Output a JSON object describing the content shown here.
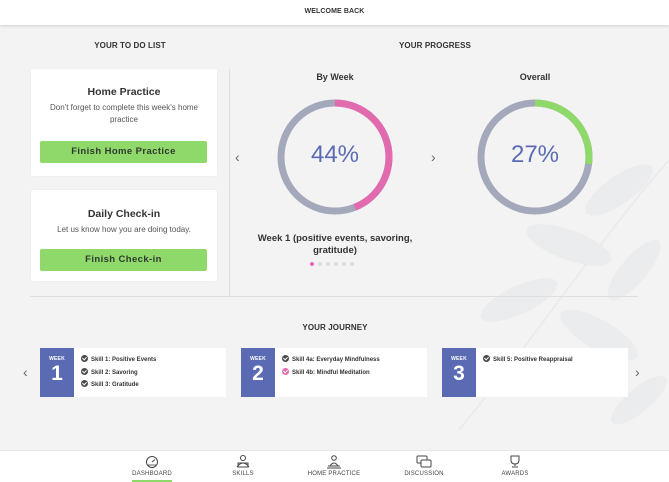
{
  "header": {
    "title": "WELCOME BACK"
  },
  "todo": {
    "section_title": "YOUR TO DO LIST",
    "home_practice": {
      "title": "Home Practice",
      "text": "Don't forget to complete this week's home practice",
      "button": "Finish Home Practice"
    },
    "checkin": {
      "title": "Daily Check-in",
      "text": "Let us know how you are doing today.",
      "button": "Finish Check-in"
    }
  },
  "progress": {
    "section_title": "YOUR PROGRESS",
    "by_week": {
      "title": "By Week",
      "percent_label": "44%",
      "value": 0.44,
      "color": "#e26bb0"
    },
    "overall": {
      "title": "Overall",
      "percent_label": "27%",
      "value": 0.27,
      "color": "#8fd96b"
    },
    "track_color": "#a3a8ba",
    "week_caption": "Week 1 (positive events, savoring, gratitude)",
    "carousel_dots": 6,
    "active_dot": 0,
    "prev_arrow": "‹",
    "next_arrow": "›"
  },
  "journey": {
    "section_title": "YOUR JOURNEY",
    "prev_arrow": "‹",
    "next_arrow": "›",
    "weeks": [
      {
        "label": "WEEK",
        "number": "1",
        "skills": [
          {
            "text": "Skill 1: Positive Events",
            "status": "done"
          },
          {
            "text": "Skill 2: Savoring",
            "status": "done"
          },
          {
            "text": "Skill 3: Gratitude",
            "status": "done"
          }
        ]
      },
      {
        "label": "WEEK",
        "number": "2",
        "skills": [
          {
            "text": "Skill 4a: Everyday Mindfulness",
            "status": "done"
          },
          {
            "text": "Skill 4b: Mindful Meditation",
            "status": "pink"
          }
        ]
      },
      {
        "label": "WEEK",
        "number": "3",
        "skills": [
          {
            "text": "Skill 5: Positive Reappraisal",
            "status": "done"
          }
        ]
      }
    ]
  },
  "nav": {
    "items": [
      {
        "label": "DASHBOARD",
        "icon": "dashboard-icon",
        "active": true
      },
      {
        "label": "SKILLS",
        "icon": "skills-icon",
        "active": false
      },
      {
        "label": "HOME PRACTICE",
        "icon": "home-practice-icon",
        "active": false
      },
      {
        "label": "DISCUSSION",
        "icon": "discussion-icon",
        "active": false
      },
      {
        "label": "AWARDS",
        "icon": "awards-icon",
        "active": false
      }
    ],
    "accent": "#8fd96b"
  }
}
